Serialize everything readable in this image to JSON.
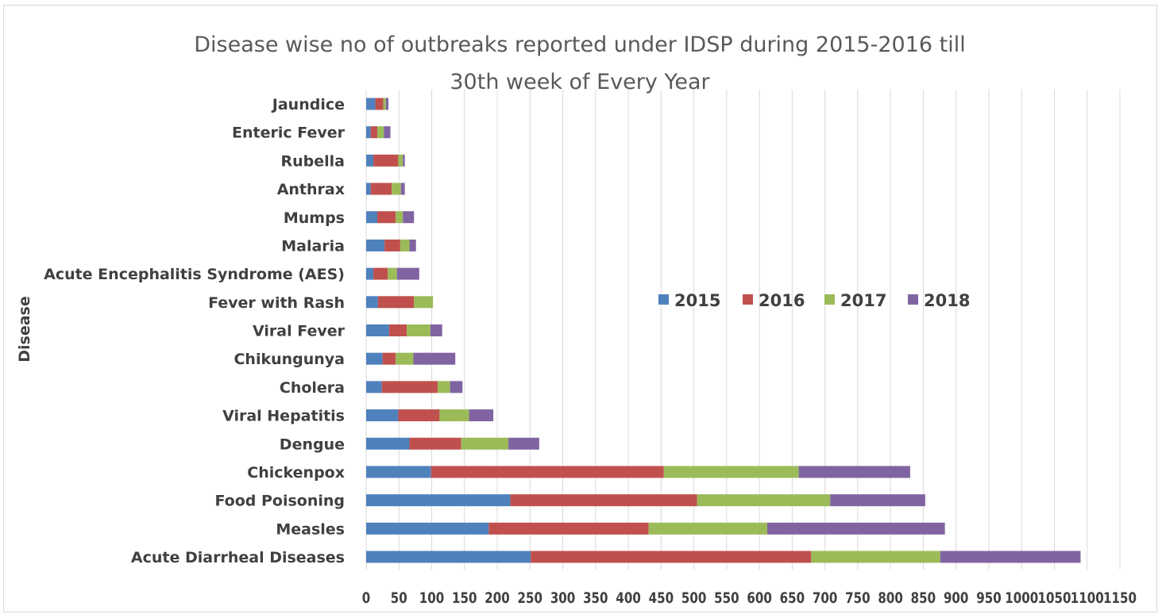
{
  "chart_data": {
    "type": "bar",
    "orientation": "horizontal",
    "stacked": true,
    "title_lines": [
      "Disease wise no of outbreaks reported under IDSP during 2015-2016 till",
      "30th week of Every Year"
    ],
    "ylabel": "Disease",
    "xlabel": "",
    "xlim": [
      0,
      1150
    ],
    "x_ticks": [
      "0",
      "50",
      "100",
      "150",
      "200",
      "250",
      "300",
      "350",
      "400",
      "450",
      "500",
      "550",
      "600",
      "650",
      "700",
      "750",
      "800",
      "850",
      "900",
      "950",
      "1000",
      "1050",
      "1100",
      "1150"
    ],
    "grid": "vertical",
    "legend_position": "center-right",
    "categories": [
      "Jaundice",
      "Enteric Fever",
      "Rubella",
      "Anthrax",
      "Mumps",
      "Malaria",
      "Acute Encephalitis Syndrome (AES)",
      "Fever with Rash",
      "Viral Fever",
      "Chikungunya",
      "Cholera",
      "Viral Hepatitis",
      "Dengue",
      "Chickenpox",
      "Food Poisoning",
      "Measles",
      "Acute Diarrheal Diseases"
    ],
    "series": [
      {
        "name": "2015",
        "color": "#4f81bd",
        "values": [
          14,
          7,
          11,
          7,
          17,
          28,
          11,
          18,
          35,
          25,
          24,
          49,
          66,
          99,
          220,
          187,
          251
        ]
      },
      {
        "name": "2016",
        "color": "#c0504d",
        "values": [
          12,
          10,
          38,
          32,
          28,
          24,
          22,
          55,
          27,
          20,
          85,
          63,
          79,
          355,
          285,
          244,
          428
        ]
      },
      {
        "name": "2017",
        "color": "#9bbb59",
        "values": [
          4,
          10,
          7,
          14,
          11,
          14,
          14,
          29,
          36,
          27,
          19,
          45,
          72,
          206,
          203,
          181,
          197
        ]
      },
      {
        "name": "2018",
        "color": "#8064a2",
        "values": [
          4,
          10,
          3,
          6,
          17,
          10,
          34,
          0,
          18,
          64,
          19,
          37,
          47,
          170,
          145,
          271,
          214
        ]
      }
    ]
  }
}
